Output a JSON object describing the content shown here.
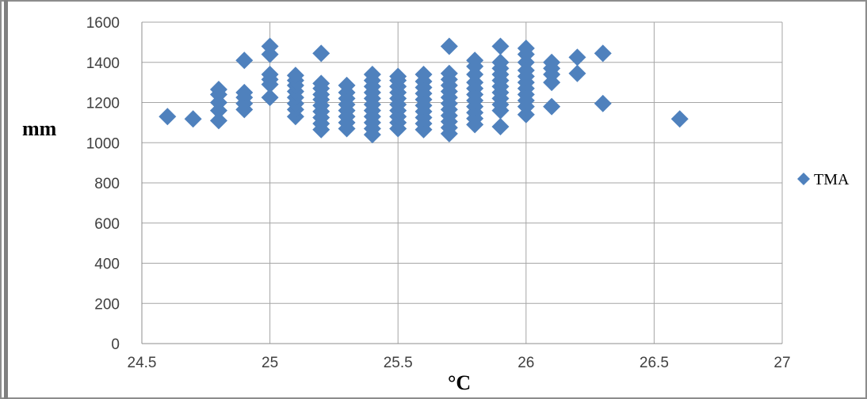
{
  "chart_data": {
    "type": "scatter",
    "title": "",
    "xlabel": "°C",
    "ylabel": "mm",
    "xlim": [
      24.5,
      27
    ],
    "ylim": [
      0,
      1600
    ],
    "x_ticks": [
      "24.5",
      "25",
      "25.5",
      "26",
      "26.5",
      "27"
    ],
    "y_ticks": [
      "0",
      "200",
      "400",
      "600",
      "800",
      "1000",
      "1200",
      "1400",
      "1600"
    ],
    "grid": true,
    "legend_position": "right",
    "series": [
      {
        "name": "TMA",
        "color": "#4f81bd",
        "marker": "diamond",
        "points": [
          [
            24.6,
            1130
          ],
          [
            24.7,
            1118
          ],
          [
            24.8,
            1110
          ],
          [
            24.8,
            1160
          ],
          [
            24.8,
            1200
          ],
          [
            24.8,
            1240
          ],
          [
            24.8,
            1265
          ],
          [
            24.9,
            1165
          ],
          [
            24.9,
            1195
          ],
          [
            24.9,
            1225
          ],
          [
            24.9,
            1250
          ],
          [
            24.9,
            1410
          ],
          [
            25.0,
            1225
          ],
          [
            25.0,
            1290
          ],
          [
            25.0,
            1315
          ],
          [
            25.0,
            1340
          ],
          [
            25.0,
            1440
          ],
          [
            25.0,
            1480
          ],
          [
            25.1,
            1130
          ],
          [
            25.1,
            1165
          ],
          [
            25.1,
            1195
          ],
          [
            25.1,
            1225
          ],
          [
            25.1,
            1255
          ],
          [
            25.1,
            1285
          ],
          [
            25.1,
            1310
          ],
          [
            25.1,
            1335
          ],
          [
            25.2,
            1065
          ],
          [
            25.2,
            1095
          ],
          [
            25.2,
            1125
          ],
          [
            25.2,
            1155
          ],
          [
            25.2,
            1185
          ],
          [
            25.2,
            1215
          ],
          [
            25.2,
            1240
          ],
          [
            25.2,
            1270
          ],
          [
            25.2,
            1295
          ],
          [
            25.2,
            1445
          ],
          [
            25.3,
            1070
          ],
          [
            25.3,
            1100
          ],
          [
            25.3,
            1130
          ],
          [
            25.3,
            1160
          ],
          [
            25.3,
            1190
          ],
          [
            25.3,
            1220
          ],
          [
            25.3,
            1250
          ],
          [
            25.3,
            1285
          ],
          [
            25.4,
            1040
          ],
          [
            25.4,
            1070
          ],
          [
            25.4,
            1100
          ],
          [
            25.4,
            1130
          ],
          [
            25.4,
            1160
          ],
          [
            25.4,
            1190
          ],
          [
            25.4,
            1220
          ],
          [
            25.4,
            1250
          ],
          [
            25.4,
            1280
          ],
          [
            25.4,
            1310
          ],
          [
            25.4,
            1340
          ],
          [
            25.5,
            1070
          ],
          [
            25.5,
            1100
          ],
          [
            25.5,
            1130
          ],
          [
            25.5,
            1160
          ],
          [
            25.5,
            1190
          ],
          [
            25.5,
            1220
          ],
          [
            25.5,
            1250
          ],
          [
            25.5,
            1280
          ],
          [
            25.5,
            1310
          ],
          [
            25.5,
            1330
          ],
          [
            25.6,
            1065
          ],
          [
            25.6,
            1095
          ],
          [
            25.6,
            1125
          ],
          [
            25.6,
            1155
          ],
          [
            25.6,
            1185
          ],
          [
            25.6,
            1215
          ],
          [
            25.6,
            1245
          ],
          [
            25.6,
            1275
          ],
          [
            25.6,
            1305
          ],
          [
            25.6,
            1340
          ],
          [
            25.7,
            1045
          ],
          [
            25.7,
            1075
          ],
          [
            25.7,
            1105
          ],
          [
            25.7,
            1135
          ],
          [
            25.7,
            1165
          ],
          [
            25.7,
            1195
          ],
          [
            25.7,
            1225
          ],
          [
            25.7,
            1255
          ],
          [
            25.7,
            1285
          ],
          [
            25.7,
            1315
          ],
          [
            25.7,
            1345
          ],
          [
            25.7,
            1480
          ],
          [
            25.8,
            1090
          ],
          [
            25.8,
            1120
          ],
          [
            25.8,
            1150
          ],
          [
            25.8,
            1180
          ],
          [
            25.8,
            1210
          ],
          [
            25.8,
            1240
          ],
          [
            25.8,
            1270
          ],
          [
            25.8,
            1300
          ],
          [
            25.8,
            1340
          ],
          [
            25.8,
            1380
          ],
          [
            25.8,
            1410
          ],
          [
            25.9,
            1080
          ],
          [
            25.9,
            1160
          ],
          [
            25.9,
            1190
          ],
          [
            25.9,
            1220
          ],
          [
            25.9,
            1250
          ],
          [
            25.9,
            1280
          ],
          [
            25.9,
            1310
          ],
          [
            25.9,
            1340
          ],
          [
            25.9,
            1370
          ],
          [
            25.9,
            1400
          ],
          [
            25.9,
            1480
          ],
          [
            26.0,
            1140
          ],
          [
            26.0,
            1180
          ],
          [
            26.0,
            1210
          ],
          [
            26.0,
            1240
          ],
          [
            26.0,
            1270
          ],
          [
            26.0,
            1300
          ],
          [
            26.0,
            1330
          ],
          [
            26.0,
            1360
          ],
          [
            26.0,
            1400
          ],
          [
            26.0,
            1440
          ],
          [
            26.0,
            1470
          ],
          [
            26.1,
            1180
          ],
          [
            26.1,
            1300
          ],
          [
            26.1,
            1340
          ],
          [
            26.1,
            1370
          ],
          [
            26.1,
            1400
          ],
          [
            26.2,
            1345
          ],
          [
            26.2,
            1425
          ],
          [
            26.3,
            1195
          ],
          [
            26.3,
            1445
          ],
          [
            26.6,
            1118
          ]
        ]
      }
    ]
  }
}
